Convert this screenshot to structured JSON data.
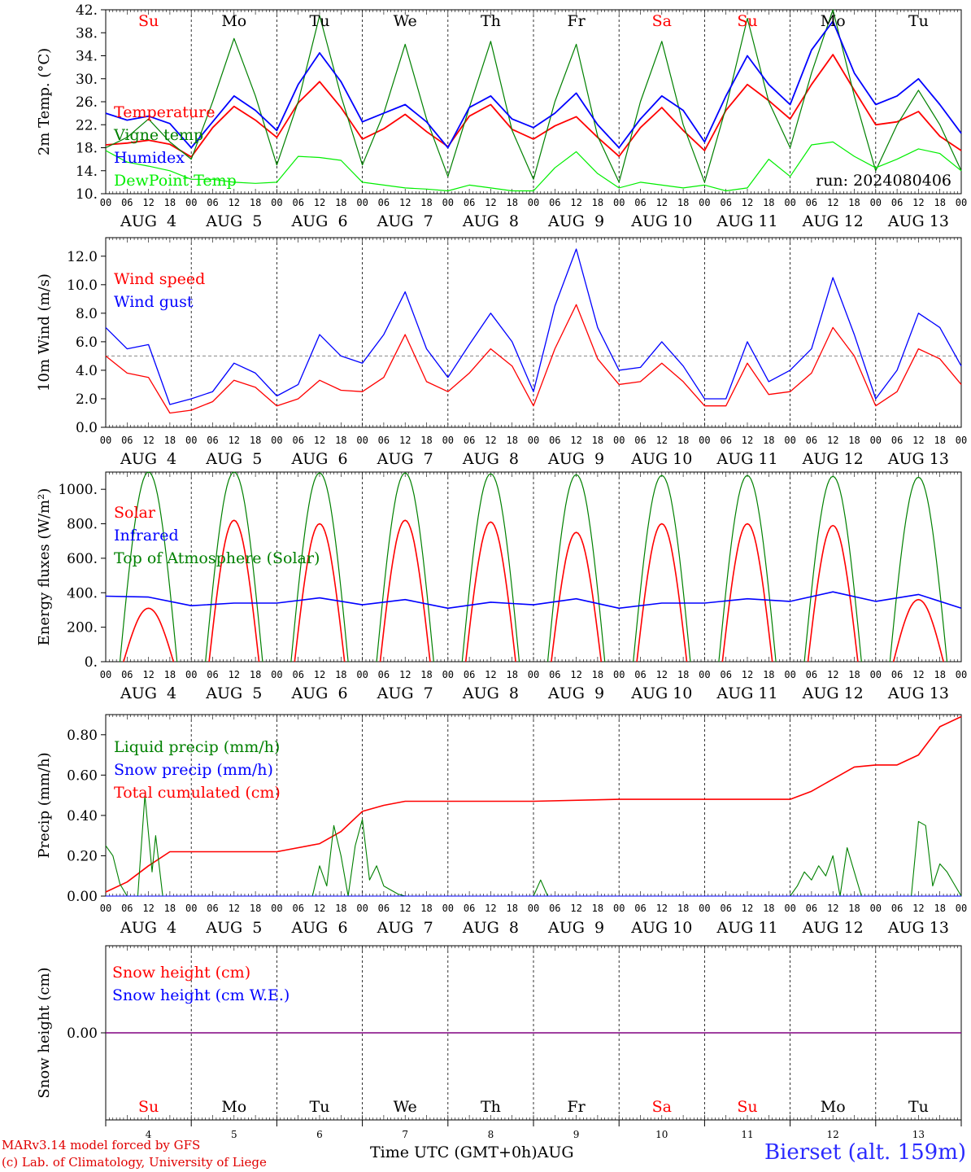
{
  "station": "Bierset (alt. 159m)",
  "credits": [
    "MARv3.14 model forced by GFS",
    "(c) Lab. of Climatology, University of Liege"
  ],
  "time_axis_label": "Time UTC (GMT+0h)AUG",
  "run_label": "run: 2024080406",
  "days": {
    "weekday_labels": [
      "Su",
      "Mo",
      "Tu",
      "We",
      "Th",
      "Fr",
      "Sa",
      "Su",
      "Mo",
      "Tu"
    ],
    "weekend_flags": [
      true,
      false,
      false,
      false,
      false,
      false,
      true,
      true,
      false,
      false
    ],
    "date_labels": [
      "AUG  4",
      "AUG  5",
      "AUG  6",
      "AUG  7",
      "AUG  8",
      "AUG  9",
      "AUG 10",
      "AUG 11",
      "AUG 12",
      "AUG 13"
    ],
    "day_numbers": [
      "4",
      "5",
      "6",
      "7",
      "8",
      "9",
      "10",
      "11",
      "12",
      "13"
    ],
    "hour_ticks": [
      "00",
      "06",
      "12",
      "18"
    ],
    "final_tick": "00"
  },
  "colors": {
    "red": "#ff0000",
    "green": "#008000",
    "blue": "#0000ff",
    "lightgreen": "#00ee00",
    "purple": "#800080",
    "weekend": "#ff0000"
  },
  "chart_data": [
    {
      "type": "line",
      "ylabel": "2m Temp. (°C)",
      "ylim": [
        10,
        42
      ],
      "yticks": [
        "10.",
        "14.",
        "18.",
        "22.",
        "26.",
        "30.",
        "34.",
        "38.",
        "42."
      ],
      "legend": [
        "Temperature",
        "Vigne temp",
        "Humidex",
        "DewPoint Temp"
      ],
      "x_hours": [
        0,
        6,
        12,
        18,
        24,
        30,
        36,
        42,
        48,
        54,
        60,
        66,
        72,
        78,
        84,
        90,
        96,
        102,
        108,
        114,
        120,
        126,
        132,
        138,
        144,
        150,
        156,
        162,
        168,
        174,
        180,
        186,
        192,
        198,
        204,
        210,
        216,
        222,
        228,
        234,
        240
      ],
      "series": [
        {
          "name": "Temperature",
          "color": "red",
          "values": [
            18.5,
            18.8,
            19.3,
            18.6,
            16.4,
            21.5,
            25.2,
            22.8,
            19.8,
            25.8,
            29.5,
            25.0,
            19.5,
            21.3,
            23.8,
            20.8,
            18.2,
            23.5,
            25.5,
            21.2,
            19.5,
            21.8,
            23.4,
            19.8,
            16.5,
            21.5,
            25.0,
            21.0,
            17.5,
            24.5,
            29.0,
            26.2,
            23.0,
            29.0,
            34.2,
            28.0,
            22.0,
            22.5,
            24.3,
            20.0,
            17.5
          ]
        },
        {
          "name": "Vigne temp",
          "color": "green",
          "values": [
            18.0,
            19.8,
            23.0,
            19.0,
            16.0,
            26.0,
            37.0,
            27.0,
            15.0,
            26.0,
            41.0,
            27.0,
            15.0,
            24.0,
            36.0,
            23.0,
            13.0,
            25.0,
            36.5,
            21.0,
            12.5,
            26.0,
            36.0,
            20.0,
            12.0,
            26.0,
            36.5,
            22.0,
            12.0,
            25.0,
            40.5,
            26.0,
            18.0,
            31.0,
            42.0,
            27.0,
            14.0,
            22.0,
            28.0,
            22.0,
            14.0
          ]
        },
        {
          "name": "Humidex",
          "color": "blue",
          "values": [
            24.0,
            22.8,
            23.5,
            22.2,
            18.0,
            22.5,
            27.0,
            24.5,
            21.0,
            29.0,
            34.5,
            29.5,
            22.5,
            24.0,
            25.5,
            22.5,
            18.0,
            25.0,
            27.0,
            23.0,
            21.5,
            24.0,
            27.5,
            22.0,
            18.0,
            23.0,
            27.0,
            24.5,
            19.0,
            27.0,
            34.0,
            29.0,
            25.5,
            35.0,
            40.0,
            31.0,
            25.5,
            27.0,
            30.0,
            25.5,
            20.5
          ]
        },
        {
          "name": "DewPoint Temp",
          "color": "lightgreen",
          "values": [
            17.5,
            15.5,
            14.8,
            14.0,
            12.5,
            12.5,
            12.0,
            11.8,
            12.0,
            16.5,
            16.3,
            15.8,
            12.0,
            11.5,
            11.0,
            10.8,
            10.5,
            11.5,
            11.0,
            10.5,
            10.5,
            14.5,
            17.3,
            13.5,
            11.0,
            12.0,
            11.5,
            11.0,
            11.5,
            10.5,
            11.0,
            16.0,
            13.0,
            18.5,
            19.0,
            16.5,
            14.5,
            16.0,
            17.8,
            17.0,
            14.0
          ]
        }
      ]
    },
    {
      "type": "line",
      "ylabel": "10m Wind (m/s)",
      "ylim": [
        0,
        13.3
      ],
      "yticks": [
        "0.0",
        "2.0",
        "4.0",
        "6.0",
        "8.0",
        "10.0",
        "12.0"
      ],
      "yticks_values": [
        0,
        2,
        4,
        6,
        8,
        10,
        12
      ],
      "reference_line": 5.0,
      "legend": [
        "Wind speed",
        "Wind gust"
      ],
      "x_hours": [
        0,
        6,
        12,
        18,
        24,
        30,
        36,
        42,
        48,
        54,
        60,
        66,
        72,
        78,
        84,
        90,
        96,
        102,
        108,
        114,
        120,
        126,
        132,
        138,
        144,
        150,
        156,
        162,
        168,
        174,
        180,
        186,
        192,
        198,
        204,
        210,
        216,
        222,
        228,
        234,
        240
      ],
      "series": [
        {
          "name": "Wind speed",
          "color": "red",
          "values": [
            5.0,
            3.8,
            3.5,
            1.0,
            1.2,
            1.8,
            3.3,
            2.8,
            1.5,
            2.0,
            3.3,
            2.6,
            2.5,
            3.5,
            6.5,
            3.2,
            2.5,
            3.8,
            5.5,
            4.3,
            1.5,
            5.5,
            8.6,
            4.8,
            3.0,
            3.2,
            4.5,
            3.2,
            1.5,
            1.5,
            4.5,
            2.3,
            2.5,
            3.8,
            7.0,
            5.0,
            1.5,
            2.5,
            5.5,
            4.8,
            3.0
          ]
        },
        {
          "name": "Wind gust",
          "color": "blue",
          "values": [
            7.0,
            5.5,
            5.8,
            1.6,
            2.0,
            2.5,
            4.5,
            3.8,
            2.2,
            3.0,
            6.5,
            5.0,
            4.5,
            6.5,
            9.5,
            5.5,
            3.5,
            5.8,
            8.0,
            6.0,
            2.5,
            8.5,
            12.5,
            7.0,
            4.0,
            4.2,
            6.0,
            4.3,
            2.0,
            2.0,
            6.0,
            3.2,
            4.0,
            5.5,
            10.5,
            6.5,
            2.0,
            4.0,
            8.0,
            7.0,
            4.3
          ]
        }
      ]
    },
    {
      "type": "line",
      "ylabel": "Energy fluxes (W/m²)",
      "ylim": [
        0,
        1100
      ],
      "yticks": [
        "0.",
        "200.",
        "400.",
        "600.",
        "800.",
        "1000."
      ],
      "yticks_values": [
        0,
        200,
        400,
        600,
        800,
        1000
      ],
      "legend": [
        "Solar",
        "Infrared",
        "Top of Atmosphere (Solar)"
      ],
      "day_peaks": {
        "toa": [
          1100,
          1100,
          1095,
          1095,
          1090,
          1085,
          1080,
          1080,
          1075,
          1070
        ],
        "solar": [
          310,
          820,
          800,
          820,
          810,
          750,
          800,
          800,
          790,
          360
        ]
      },
      "series": [
        {
          "name": "Infrared",
          "color": "blue",
          "x_hours": [
            0,
            12,
            24,
            36,
            48,
            60,
            72,
            84,
            96,
            108,
            120,
            132,
            144,
            156,
            168,
            180,
            192,
            204,
            216,
            228,
            240
          ],
          "values": [
            380,
            375,
            325,
            340,
            340,
            370,
            330,
            360,
            310,
            345,
            330,
            365,
            310,
            340,
            340,
            365,
            350,
            405,
            350,
            390,
            310
          ]
        }
      ]
    },
    {
      "type": "line",
      "ylabel": "Precip (mm/h)",
      "ylim": [
        0,
        0.9
      ],
      "yticks": [
        "0.00",
        "0.20",
        "0.40",
        "0.60",
        "0.80"
      ],
      "yticks_values": [
        0,
        0.2,
        0.4,
        0.6,
        0.8
      ],
      "legend": [
        "Liquid precip (mm/h)",
        "Snow precip (mm/h)",
        "Total cumulated (cm)"
      ],
      "series": [
        {
          "name": "Total cumulated (cm)",
          "color": "red",
          "x_hours": [
            0,
            6,
            12,
            18,
            24,
            48,
            60,
            66,
            72,
            78,
            84,
            96,
            120,
            144,
            168,
            192,
            198,
            204,
            210,
            216,
            222,
            228,
            234,
            240
          ],
          "values": [
            0.02,
            0.07,
            0.15,
            0.22,
            0.22,
            0.22,
            0.26,
            0.32,
            0.42,
            0.45,
            0.47,
            0.47,
            0.47,
            0.48,
            0.48,
            0.48,
            0.52,
            0.58,
            0.64,
            0.65,
            0.65,
            0.7,
            0.84,
            0.89
          ]
        },
        {
          "name": "Liquid precip (mm/h)",
          "color": "green",
          "x_hours": [
            0,
            2,
            4,
            6,
            9,
            11,
            13,
            14,
            16,
            24,
            58,
            60,
            62,
            64,
            66,
            68,
            70,
            72,
            74,
            76,
            78,
            82,
            84,
            120,
            122,
            124,
            192,
            194,
            196,
            198,
            200,
            202,
            204,
            206,
            208,
            210,
            212,
            216,
            226,
            228,
            230,
            232,
            234,
            236,
            238,
            240
          ],
          "values": [
            0.25,
            0.2,
            0.06,
            0.0,
            0.0,
            0.5,
            0.12,
            0.3,
            0.0,
            0.0,
            0.0,
            0.15,
            0.05,
            0.35,
            0.2,
            0.0,
            0.25,
            0.38,
            0.08,
            0.15,
            0.05,
            0.01,
            0.0,
            0.0,
            0.08,
            0.0,
            0.0,
            0.05,
            0.12,
            0.08,
            0.15,
            0.1,
            0.2,
            0.0,
            0.24,
            0.12,
            0.0,
            0.0,
            0.0,
            0.37,
            0.35,
            0.05,
            0.16,
            0.12,
            0.06,
            0.0
          ]
        },
        {
          "name": "Snow precip (mm/h)",
          "color": "blue",
          "x_hours": [
            0,
            240
          ],
          "values": [
            0,
            0
          ]
        }
      ]
    },
    {
      "type": "line",
      "ylabel": "Snow height (cm)",
      "ylim": [
        -1,
        1
      ],
      "yticks": [
        "0.00"
      ],
      "yticks_values": [
        0
      ],
      "legend": [
        "Snow height (cm)",
        "Snow height (cm W.E.)"
      ],
      "series": [
        {
          "name": "Snow height (cm)",
          "color": "red",
          "x_hours": [
            0,
            240
          ],
          "values": [
            0,
            0
          ]
        },
        {
          "name": "Snow height (cm W.E.)",
          "color": "blue",
          "x_hours": [
            0,
            240
          ],
          "values": [
            0,
            0
          ]
        }
      ]
    }
  ]
}
